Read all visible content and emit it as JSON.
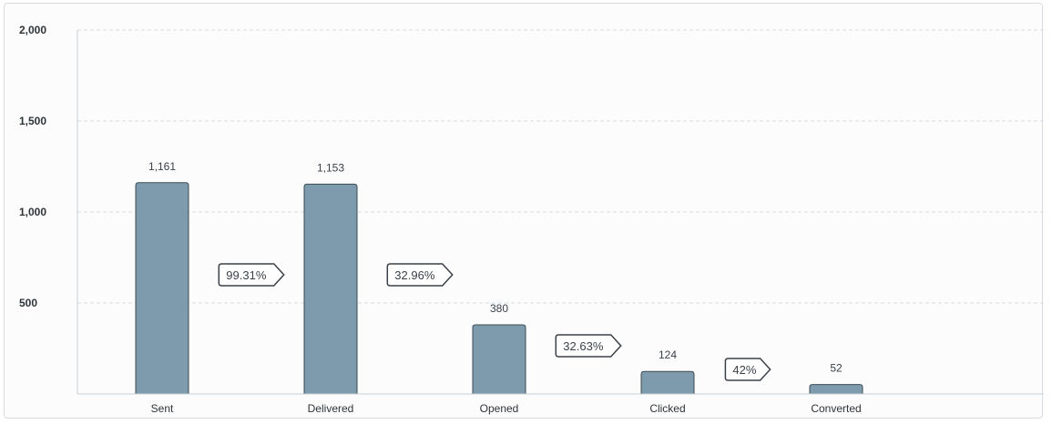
{
  "chart_data": {
    "type": "bar",
    "categories": [
      "Sent",
      "Delivered",
      "Opened",
      "Clicked",
      "Converted"
    ],
    "values": [
      1161,
      1153,
      380,
      124,
      52
    ],
    "value_labels": [
      "1,161",
      "1,153",
      "380",
      "124",
      "52"
    ],
    "conversion_rates": [
      "99.31%",
      "32.96%",
      "32.63%",
      "42%"
    ],
    "yticks": [
      500,
      1000,
      1500,
      2000
    ],
    "ytick_labels": [
      "500",
      "1,000",
      "1,500",
      "2,000"
    ],
    "ylim": [
      0,
      2000
    ],
    "grid": true,
    "colors": {
      "bar_fill": "#7d9bac",
      "bar_stroke": "#3d4b55",
      "grid": "#d5dce2",
      "axis": "#c9d0d6",
      "rate_border": "#3b4148"
    }
  }
}
